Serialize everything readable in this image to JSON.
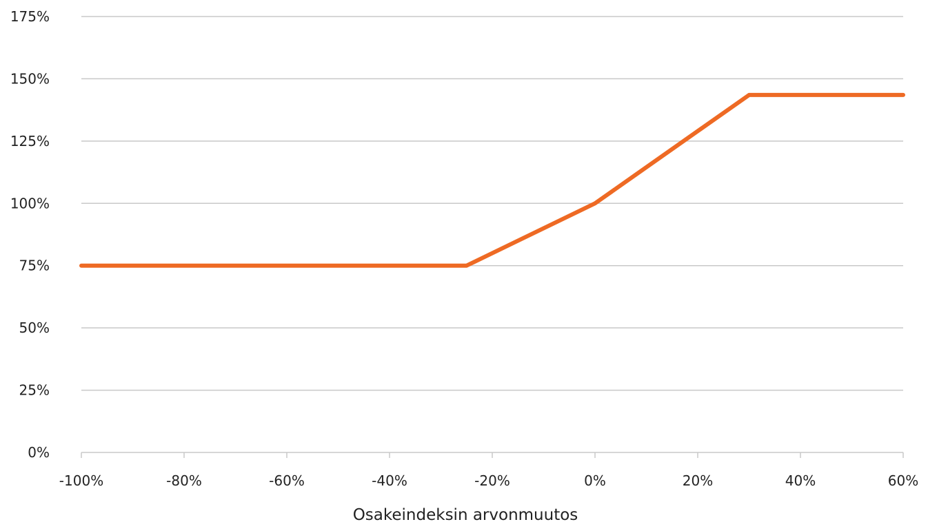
{
  "chart_data": {
    "type": "line",
    "xlabel": "Osakeindeksin arvonmuutos",
    "ylabel": "",
    "xlim": [
      -100,
      60
    ],
    "ylim": [
      0,
      175
    ],
    "x_ticks": [
      -100,
      -80,
      -60,
      -40,
      -20,
      0,
      20,
      40,
      60
    ],
    "y_ticks": [
      0,
      25,
      50,
      75,
      100,
      125,
      150,
      175
    ],
    "x_tick_labels": [
      "-100%",
      "-80%",
      "-60%",
      "-40%",
      "-20%",
      "0%",
      "20%",
      "40%",
      "60%"
    ],
    "y_tick_labels": [
      "0%",
      "25%",
      "50%",
      "75%",
      "100%",
      "125%",
      "150%",
      "175%"
    ],
    "grid": "horizontal",
    "legend": "none",
    "series": [
      {
        "color": "#ee6a24",
        "points": [
          {
            "x": -100,
            "y": 75
          },
          {
            "x": -25,
            "y": 75
          },
          {
            "x": 0,
            "y": 100
          },
          {
            "x": 30,
            "y": 143.5
          },
          {
            "x": 60,
            "y": 143.5
          }
        ]
      }
    ]
  }
}
